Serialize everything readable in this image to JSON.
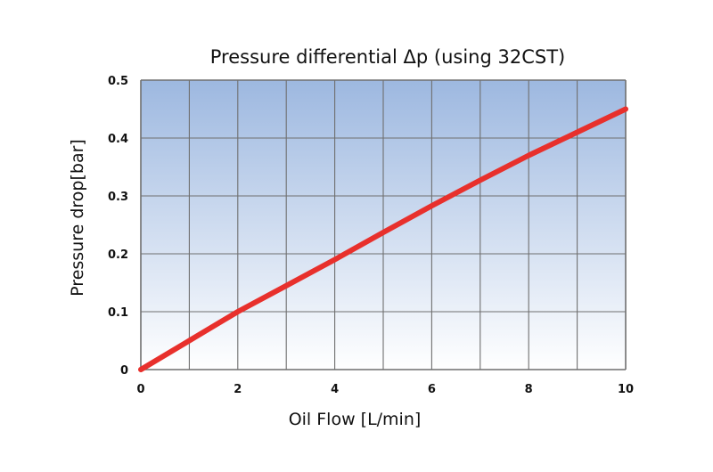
{
  "chart_data": {
    "type": "line",
    "title": "Pressure differential Δp (using 32CST)",
    "xlabel": "Oil Flow [L/min]",
    "ylabel": "Pressure drop[bar]",
    "xlim": [
      0,
      10
    ],
    "ylim": [
      0,
      0.5
    ],
    "x_ticks": [
      "0",
      "2",
      "4",
      "6",
      "8",
      "10"
    ],
    "y_ticks": [
      "0",
      "0.1",
      "0.2",
      "0.3",
      "0.4",
      "0.5"
    ],
    "grid": true,
    "series": [
      {
        "color": "#e8302c",
        "x": [
          0,
          1,
          2,
          3,
          4,
          5,
          6,
          7,
          8,
          9,
          10
        ],
        "y": [
          0,
          0.05,
          0.1,
          0.145,
          0.19,
          0.237,
          0.283,
          0.327,
          0.37,
          0.41,
          0.45
        ]
      }
    ],
    "plot_gradient": [
      "#9db8e0",
      "#ffffff"
    ],
    "grid_color": "#6f6f6f"
  }
}
